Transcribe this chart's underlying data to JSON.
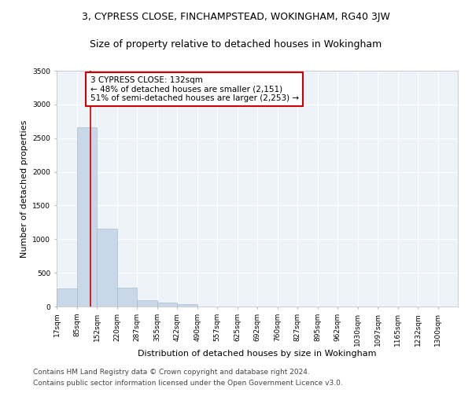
{
  "title1": "3, CYPRESS CLOSE, FINCHAMPSTEAD, WOKINGHAM, RG40 3JW",
  "title2": "Size of property relative to detached houses in Wokingham",
  "xlabel": "Distribution of detached houses by size in Wokingham",
  "ylabel": "Number of detached properties",
  "footer_line1": "Contains HM Land Registry data © Crown copyright and database right 2024.",
  "footer_line2": "Contains public sector information licensed under the Open Government Licence v3.0.",
  "annotation_line1": "3 CYPRESS CLOSE: 132sqm",
  "annotation_line2": "← 48% of detached houses are smaller (2,151)",
  "annotation_line3": "51% of semi-detached houses are larger (2,253) →",
  "property_size": 132,
  "bar_color": "#c8d8e8",
  "bar_edge_color": "#aabbcc",
  "marker_color": "#cc0000",
  "annotation_box_edge": "#cc0000",
  "background_color": "#eef2f9",
  "grid_color": "#ffffff",
  "ylim": [
    0,
    3500
  ],
  "bin_edges": [
    17,
    85,
    152,
    220,
    287,
    355,
    422,
    490,
    557,
    625,
    692,
    760,
    827,
    895,
    962,
    1030,
    1097,
    1165,
    1232,
    1300,
    1367
  ],
  "bar_heights": [
    270,
    2660,
    1150,
    280,
    95,
    55,
    35,
    0,
    0,
    0,
    0,
    0,
    0,
    0,
    0,
    0,
    0,
    0,
    0,
    0
  ],
  "title1_fontsize": 9,
  "title2_fontsize": 9,
  "xlabel_fontsize": 8,
  "ylabel_fontsize": 8,
  "tick_fontsize": 6.5,
  "annotation_fontsize": 7.5,
  "footer_fontsize": 6.5
}
